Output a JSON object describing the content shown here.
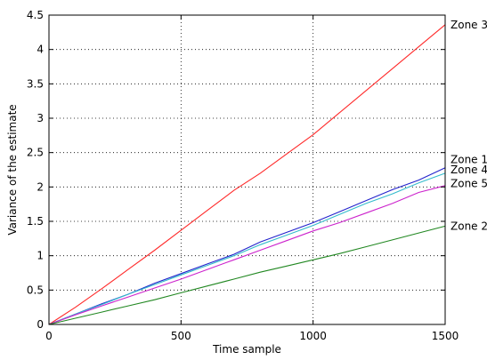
{
  "chart_data": {
    "type": "line",
    "title": "",
    "xlabel": "Time sample",
    "ylabel": "Variance of the estimate",
    "xlim": [
      0,
      1500
    ],
    "ylim": [
      0,
      4.5
    ],
    "x_ticks": [
      0,
      500,
      1000,
      1500
    ],
    "y_ticks": [
      0,
      0.5,
      1,
      1.5,
      2,
      2.5,
      3,
      3.5,
      4,
      4.5
    ],
    "grid": true,
    "legend": "inline labels at right edge",
    "series": [
      {
        "name": "Zone 3",
        "color": "#ff2a2a",
        "x": [
          0,
          100,
          200,
          300,
          400,
          500,
          600,
          700,
          800,
          900,
          1000,
          1100,
          1200,
          1300,
          1400,
          1500
        ],
        "y": [
          0,
          0.25,
          0.52,
          0.8,
          1.08,
          1.37,
          1.66,
          1.95,
          2.2,
          2.48,
          2.76,
          3.08,
          3.4,
          3.72,
          4.04,
          4.36
        ]
      },
      {
        "name": "Zone 1",
        "color": "#2222cc",
        "x": [
          0,
          100,
          200,
          300,
          400,
          500,
          600,
          700,
          800,
          900,
          1000,
          1100,
          1200,
          1300,
          1400,
          1500
        ],
        "y": [
          0,
          0.15,
          0.3,
          0.44,
          0.6,
          0.74,
          0.88,
          1.02,
          1.2,
          1.34,
          1.48,
          1.64,
          1.8,
          1.96,
          2.1,
          2.28
        ]
      },
      {
        "name": "Zone 4",
        "color": "#33bbcc",
        "x": [
          0,
          100,
          200,
          300,
          400,
          500,
          600,
          700,
          800,
          900,
          1000,
          1100,
          1200,
          1300,
          1400,
          1500
        ],
        "y": [
          0,
          0.15,
          0.29,
          0.44,
          0.58,
          0.72,
          0.86,
          1.0,
          1.16,
          1.3,
          1.44,
          1.6,
          1.76,
          1.9,
          2.06,
          2.2
        ]
      },
      {
        "name": "Zone 5",
        "color": "#cc22cc",
        "x": [
          0,
          100,
          200,
          300,
          400,
          500,
          600,
          700,
          800,
          900,
          1000,
          1100,
          1200,
          1300,
          1400,
          1500
        ],
        "y": [
          0,
          0.14,
          0.27,
          0.4,
          0.53,
          0.66,
          0.8,
          0.94,
          1.08,
          1.22,
          1.36,
          1.48,
          1.62,
          1.76,
          1.92,
          2.02
        ]
      },
      {
        "name": "Zone 2",
        "color": "#228822",
        "x": [
          0,
          100,
          200,
          300,
          400,
          500,
          600,
          700,
          800,
          900,
          1000,
          1100,
          1200,
          1300,
          1400,
          1500
        ],
        "y": [
          0,
          0.09,
          0.18,
          0.27,
          0.36,
          0.46,
          0.56,
          0.66,
          0.76,
          0.85,
          0.94,
          1.03,
          1.13,
          1.23,
          1.33,
          1.43
        ]
      }
    ],
    "series_labels": [
      {
        "text": "Zone 3",
        "y": 4.36
      },
      {
        "text": "Zone 1",
        "y": 2.4
      },
      {
        "text": "Zone 4",
        "y": 2.25
      },
      {
        "text": "Zone 5",
        "y": 2.05
      },
      {
        "text": "Zone 2",
        "y": 1.43
      }
    ]
  }
}
